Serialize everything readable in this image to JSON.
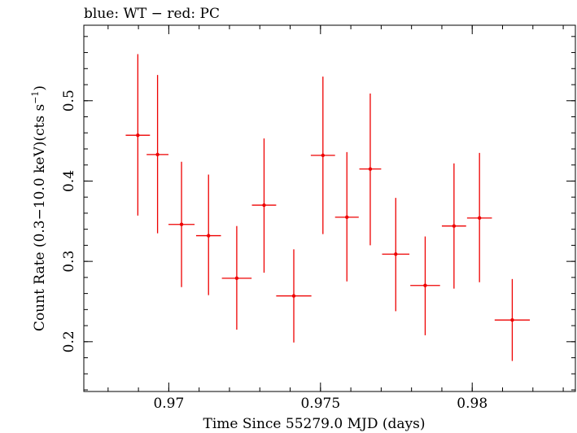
{
  "chart_data": {
    "type": "scatter",
    "title": "blue: WT − red: PC",
    "xlabel": "Time Since 55279.0 MJD (days)",
    "ylabel_main": "Count Rate (0.3−10.0 keV)(cts s",
    "ylabel_sup": "−1",
    "ylabel_close": ")",
    "xlim": [
      0.9672,
      0.9834
    ],
    "ylim": [
      0.138,
      0.594
    ],
    "xticks": [
      {
        "value": 0.97,
        "label": "0.97"
      },
      {
        "value": 0.975,
        "label": "0.975"
      },
      {
        "value": 0.98,
        "label": "0.98"
      }
    ],
    "xminor_step": 0.001,
    "yticks": [
      {
        "value": 0.2,
        "label": "0.2"
      },
      {
        "value": 0.3,
        "label": "0.3"
      },
      {
        "value": 0.4,
        "label": "0.4"
      },
      {
        "value": 0.5,
        "label": "0.5"
      }
    ],
    "yminor_step": 0.02,
    "grid": false,
    "series": [
      {
        "color": "#ee0000",
        "points": [
          {
            "x": 0.96898,
            "xerr": 0.0004,
            "y": 0.457,
            "ylo": 0.357,
            "yhi": 0.558
          },
          {
            "x": 0.96963,
            "xerr": 0.00036,
            "y": 0.433,
            "ylo": 0.335,
            "yhi": 0.532
          },
          {
            "x": 0.97042,
            "xerr": 0.00043,
            "y": 0.346,
            "ylo": 0.268,
            "yhi": 0.424
          },
          {
            "x": 0.97131,
            "xerr": 0.00041,
            "y": 0.332,
            "ylo": 0.258,
            "yhi": 0.408
          },
          {
            "x": 0.97224,
            "xerr": 0.00049,
            "y": 0.279,
            "ylo": 0.215,
            "yhi": 0.344
          },
          {
            "x": 0.97314,
            "xerr": 0.0004,
            "y": 0.37,
            "ylo": 0.286,
            "yhi": 0.453
          },
          {
            "x": 0.97412,
            "xerr": 0.00058,
            "y": 0.257,
            "ylo": 0.199,
            "yhi": 0.315
          },
          {
            "x": 0.97508,
            "xerr": 0.0004,
            "y": 0.432,
            "ylo": 0.334,
            "yhi": 0.53
          },
          {
            "x": 0.97587,
            "xerr": 0.00039,
            "y": 0.355,
            "ylo": 0.275,
            "yhi": 0.436
          },
          {
            "x": 0.97664,
            "xerr": 0.00036,
            "y": 0.415,
            "ylo": 0.32,
            "yhi": 0.509
          },
          {
            "x": 0.97748,
            "xerr": 0.00045,
            "y": 0.309,
            "ylo": 0.238,
            "yhi": 0.379
          },
          {
            "x": 0.97845,
            "xerr": 0.00049,
            "y": 0.27,
            "ylo": 0.208,
            "yhi": 0.331
          },
          {
            "x": 0.9794,
            "xerr": 0.0004,
            "y": 0.344,
            "ylo": 0.266,
            "yhi": 0.422
          },
          {
            "x": 0.98024,
            "xerr": 0.00041,
            "y": 0.354,
            "ylo": 0.274,
            "yhi": 0.435
          },
          {
            "x": 0.98132,
            "xerr": 0.00058,
            "y": 0.227,
            "ylo": 0.176,
            "yhi": 0.278
          }
        ]
      }
    ]
  }
}
